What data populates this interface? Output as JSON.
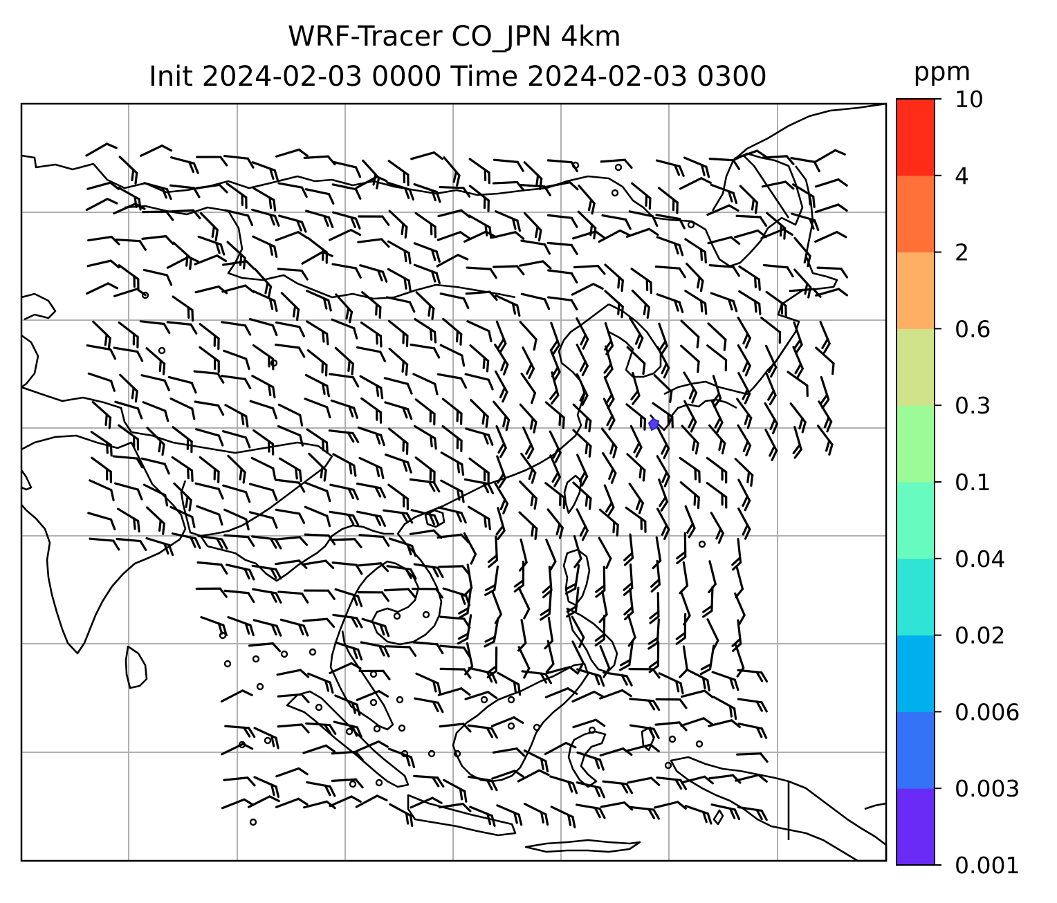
{
  "title": {
    "line1": "WRF-Tracer CO_JPN 4km",
    "line2": "Init 2024-02-03 0000 Time 2024-02-03 0300"
  },
  "colorbar": {
    "unit": "ppm",
    "ticks": [
      "0.001",
      "0.003",
      "0.006",
      "0.02",
      "0.04",
      "0.1",
      "0.3",
      "0.6",
      "2",
      "4",
      "10"
    ],
    "colors": [
      "#6a2bf7",
      "#3472f6",
      "#00b0ee",
      "#2fe3d5",
      "#67fbc0",
      "#9cfa97",
      "#d1e38a",
      "#fdb064",
      "#ff7137",
      "#ff2d17"
    ]
  },
  "map": {
    "grid": "on",
    "tracer_blob_color": "#5a3cf0",
    "calm_wind_symbol": "circle",
    "barb_color": "#000000"
  }
}
